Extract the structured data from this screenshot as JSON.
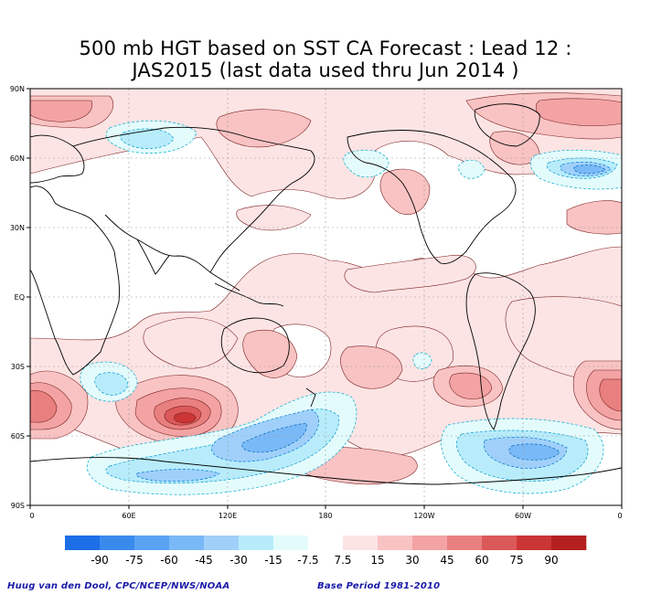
{
  "title": {
    "line1": "500 mb HGT based on SST CA Forecast : Lead 12 :",
    "line2": "JAS2015 (last data used thru Jun 2014 )"
  },
  "map": {
    "lat_ticks": [
      "90N",
      "60N",
      "30N",
      "EQ",
      "30S",
      "60S",
      "90S"
    ],
    "lon_ticks": [
      "0",
      "60E",
      "120E",
      "180",
      "120W",
      "60W",
      "0"
    ],
    "grid_lines": true
  },
  "legend": {
    "labels": [
      "-90",
      "-75",
      "-60",
      "-45",
      "-30",
      "-15",
      "-7.5",
      "7.5",
      "15",
      "30",
      "45",
      "60",
      "75",
      "90"
    ],
    "colors": [
      "#1e6ee8",
      "#3a8aee",
      "#5aa3f3",
      "#7ab9f7",
      "#a0d0fa",
      "#b8ecfb",
      "#e4fbfc",
      "#ffffff",
      "#fde4e4",
      "#f9c3c3",
      "#f3a3a3",
      "#e98080",
      "#dc5959",
      "#cc3535",
      "#b41f1f"
    ]
  },
  "credits": {
    "left": "Huug van den Dool, CPC/NCEP/NWS/NOAA",
    "right": "Base Period 1981-2010"
  }
}
